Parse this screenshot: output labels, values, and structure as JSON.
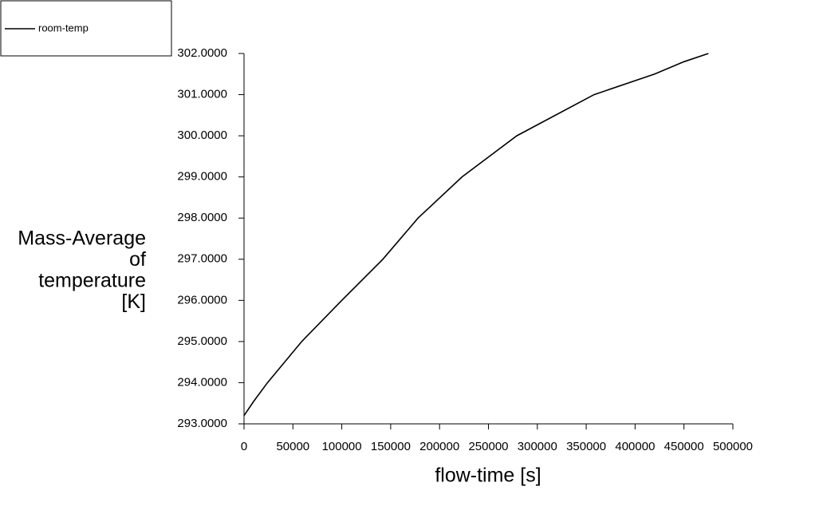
{
  "chart_data": {
    "type": "line",
    "x_label": "flow-time [s]",
    "y_label": [
      "Mass-Average",
      "of",
      "temperature",
      "[K]"
    ],
    "x": [
      0,
      10000,
      24000,
      59000,
      100000,
      142000,
      178000,
      223000,
      279000,
      358000,
      420000,
      450000,
      475000
    ],
    "series": [
      {
        "name": "room-temp",
        "color": "#000000",
        "values": [
          293.2,
          293.55,
          294,
          295,
          296,
          297,
          298,
          299,
          300,
          301,
          301.5,
          301.8,
          302
        ]
      }
    ],
    "xlim": [
      0,
      500000
    ],
    "xticks": [
      0,
      50000,
      100000,
      150000,
      200000,
      250000,
      300000,
      350000,
      400000,
      450000,
      500000
    ],
    "ylim": [
      293,
      302
    ],
    "yticks": [
      {
        "value": 293,
        "label": "293.0000"
      },
      {
        "value": 294,
        "label": "294.0000"
      },
      {
        "value": 295,
        "label": "295.0000"
      },
      {
        "value": 296,
        "label": "296.0000"
      },
      {
        "value": 297,
        "label": "297.0000"
      },
      {
        "value": 298,
        "label": "298.0000"
      },
      {
        "value": 299,
        "label": "299.0000"
      },
      {
        "value": 300,
        "label": "300.0000"
      },
      {
        "value": 301,
        "label": "301.0000"
      },
      {
        "value": 302,
        "label": "302.0000"
      }
    ],
    "grid": false,
    "legend": "top-left"
  }
}
